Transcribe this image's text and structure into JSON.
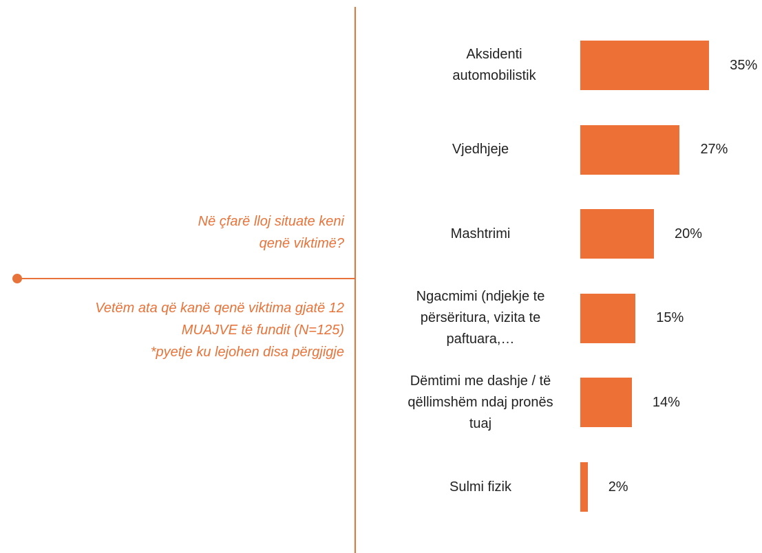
{
  "chart_data": {
    "type": "bar",
    "orientation": "horizontal",
    "question": "Në çfarë lloj situate keni qenë viktimë?",
    "subtitle": "Vetëm ata që kanë qenë viktima gjatë 12 MUAJVE të fundit (N=125)",
    "footnote": "*pyetje ku lejohen disa përgjigje",
    "categories": [
      "Aksidenti automobilistik",
      "Vjedhjeje",
      "Mashtrimi",
      "Ngacmimi (ndjekje te përsëritura, vizita te paftuara,…",
      "Dëmtimi me dashje / të qëllimshëm ndaj pronës tuaj",
      "Sulmi fizik"
    ],
    "values": [
      35,
      27,
      20,
      15,
      14,
      2
    ],
    "value_labels": [
      "35%",
      "27%",
      "20%",
      "15%",
      "14%",
      "2%"
    ],
    "color": "#ED7136"
  }
}
